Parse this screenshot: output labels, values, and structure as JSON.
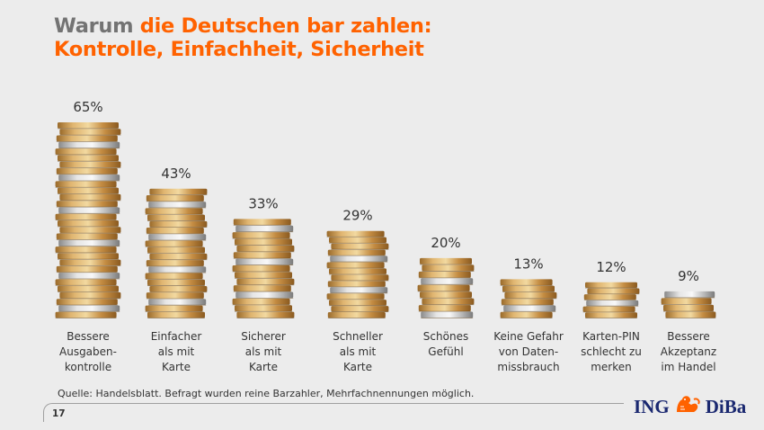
{
  "title": {
    "part1": "Warum",
    "part2": " die Deutschen bar zahlen:",
    "line2": "Kontrolle, Einfachheit, Sicherheit"
  },
  "chart_data": {
    "type": "bar",
    "title": "Warum die Deutschen bar zahlen: Kontrolle, Einfachheit, Sicherheit",
    "xlabel": "",
    "ylabel": "",
    "ylim": [
      0,
      65
    ],
    "grid": false,
    "unit": "%",
    "categories": [
      "Bessere Ausgaben-kontrolle",
      "Einfacher als mit Karte",
      "Sicherer als mit Karte",
      "Schneller als mit Karte",
      "Schönes Gefühl",
      "Keine Gefahr von Daten-missbrauch",
      "Karten-PIN schlecht zu merken",
      "Bessere Akzeptanz im Handel"
    ],
    "category_lines": [
      [
        "Bessere",
        "Ausgaben-",
        "kontrolle"
      ],
      [
        "Einfacher",
        "als mit",
        "Karte"
      ],
      [
        "Sicherer",
        "als mit",
        "Karte"
      ],
      [
        "Schneller",
        "als mit",
        "Karte"
      ],
      [
        "Schönes",
        "Gefühl"
      ],
      [
        "Keine Gefahr",
        "von Daten-",
        "missbrauch"
      ],
      [
        "Karten-PIN",
        "schlecht zu",
        "merken"
      ],
      [
        "Bessere",
        "Akzeptanz",
        "im Handel"
      ]
    ],
    "values": [
      65,
      43,
      33,
      29,
      20,
      13,
      12,
      9
    ],
    "value_labels": [
      "65%",
      "43%",
      "33%",
      "29%",
      "20%",
      "13%",
      "12%",
      "9%"
    ],
    "bar_style": "coin-stack"
  },
  "colors": {
    "accent": "#ff6200",
    "title_grey": "#737373",
    "gold": "#c9974a",
    "silver": "#c8c8c8",
    "logo_blue": "#1a2870"
  },
  "footer": {
    "source": "Quelle: Handelsblatt. Befragt wurden reine Barzahler, Mehrfachnennungen möglich.",
    "page_number": "17"
  },
  "logo": {
    "left": "ING",
    "right": "DiBa",
    "icon": "lion-icon"
  }
}
